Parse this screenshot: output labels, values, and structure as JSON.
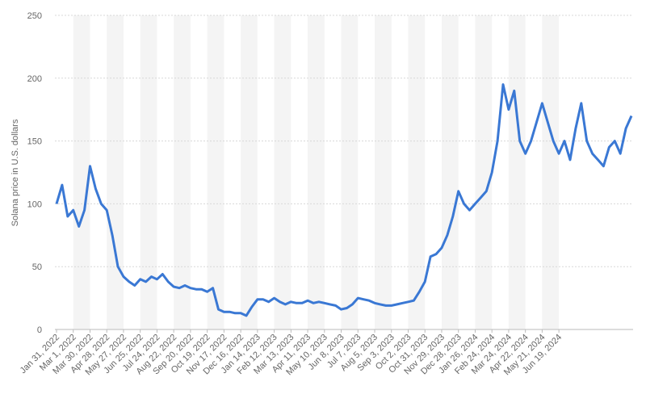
{
  "chart_data": {
    "type": "line",
    "y_label": "Solana price in U.S. dollars",
    "categories": [
      "Jan 31, 2022",
      null,
      null,
      "Mar 1, 2022",
      null,
      null,
      "Mar 30, 2022",
      null,
      null,
      "Apr 28, 2022",
      null,
      null,
      "May 27, 2022",
      null,
      null,
      "Jun 25, 2022",
      null,
      null,
      "Jul 24, 2022",
      null,
      null,
      "Aug 22, 2022",
      null,
      null,
      "Sep 20, 2022",
      null,
      null,
      "Oct 19, 2022",
      null,
      null,
      "Nov 17, 2022",
      null,
      null,
      "Dec 16, 2022",
      null,
      null,
      "Jan 14, 2023",
      null,
      null,
      "Feb 12, 2023",
      null,
      null,
      "Mar 13, 2023",
      null,
      null,
      "Apr 11, 2023",
      null,
      null,
      "May 10, 2023",
      null,
      null,
      "Jun 8, 2023",
      null,
      null,
      "Jul 7, 2023",
      null,
      null,
      "Aug 5, 2023",
      null,
      null,
      "Sep 3, 2023",
      null,
      null,
      "Oct 2, 2023",
      null,
      null,
      "Oct 31, 2023",
      null,
      null,
      "Nov 29, 2023",
      null,
      null,
      "Dec 28, 2023",
      null,
      null,
      "Jan 26, 2024",
      null,
      null,
      "Feb 24, 2024",
      null,
      null,
      "Mar 24, 2024",
      null,
      null,
      "Apr 22, 2024",
      null,
      null,
      "May 21, 2024",
      null,
      null,
      "Jun 19, 2024",
      null,
      null,
      null,
      null,
      null,
      null,
      null,
      null,
      null,
      null,
      null,
      null,
      null
    ],
    "values": [
      100,
      115,
      90,
      95,
      82,
      95,
      130,
      112,
      100,
      95,
      75,
      50,
      42,
      38,
      35,
      40,
      38,
      42,
      40,
      44,
      38,
      34,
      33,
      35,
      33,
      32,
      32,
      30,
      33,
      16,
      14,
      14,
      13,
      13,
      11,
      18,
      24,
      24,
      22,
      25,
      22,
      20,
      22,
      21,
      21,
      23,
      21,
      22,
      21,
      20,
      19,
      16,
      17,
      20,
      25,
      24,
      23,
      21,
      20,
      19,
      19,
      20,
      21,
      22,
      23,
      30,
      38,
      58,
      60,
      65,
      75,
      90,
      110,
      100,
      95,
      100,
      105,
      110,
      125,
      150,
      195,
      175,
      190,
      150,
      140,
      150,
      165,
      180,
      165,
      150,
      140,
      150,
      135,
      160,
      180,
      150,
      140,
      135,
      130,
      145,
      150,
      140,
      160,
      170
    ],
    "color": "#3a78d4",
    "ylim": [
      0,
      250
    ],
    "yticks": [
      0,
      50,
      100,
      150,
      200,
      250
    ],
    "grid": true
  }
}
